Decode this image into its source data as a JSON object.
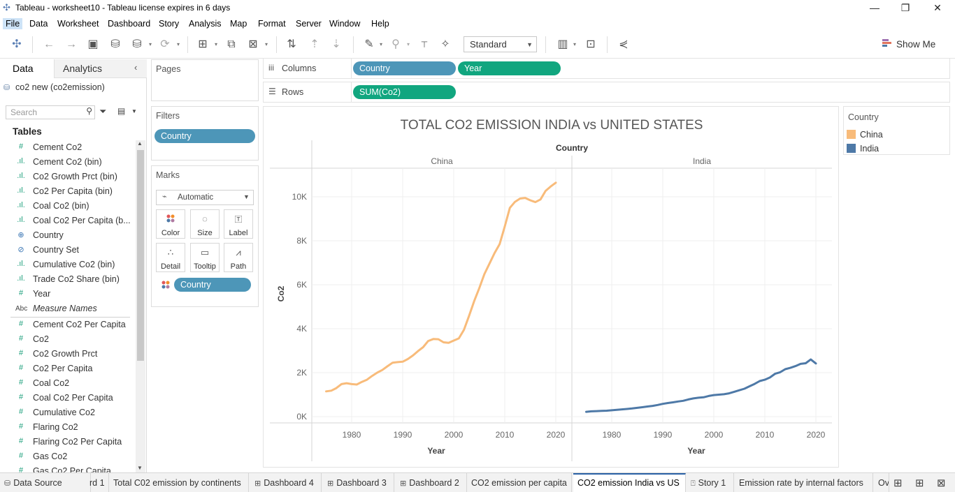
{
  "window": {
    "title": "Tableau - worksheet10 - Tableau license expires in 6 days",
    "minimize": "—",
    "restore": "❐",
    "close": "✕"
  },
  "menu": [
    "File",
    "Data",
    "Worksheet",
    "Dashboard",
    "Story",
    "Analysis",
    "Map",
    "Format",
    "Server",
    "Window",
    "Help"
  ],
  "toolbar": {
    "fit_value": "Standard",
    "show_me_label": "Show Me"
  },
  "data_pane": {
    "tabs": [
      "Data",
      "Analytics"
    ],
    "datasource": "co2 new (co2emission)",
    "search_placeholder": "Search",
    "tables_heading": "Tables",
    "dimensions": [
      {
        "icon": "#",
        "name": "Cement Co2"
      },
      {
        "icon": "bin",
        "name": "Cement Co2 (bin)"
      },
      {
        "icon": "bin",
        "name": "Co2 Growth Prct (bin)"
      },
      {
        "icon": "bin",
        "name": "Co2 Per Capita (bin)"
      },
      {
        "icon": "bin",
        "name": "Coal Co2 (bin)"
      },
      {
        "icon": "bin",
        "name": "Coal Co2 Per Capita (b..."
      },
      {
        "icon": "globe",
        "name": "Country"
      },
      {
        "icon": "set",
        "name": "Country Set"
      },
      {
        "icon": "bin",
        "name": "Cumulative Co2 (bin)"
      },
      {
        "icon": "bin",
        "name": "Trade Co2 Share (bin)"
      },
      {
        "icon": "#",
        "name": "Year"
      },
      {
        "icon": "Abc",
        "name": "Measure Names"
      }
    ],
    "measures": [
      "Cement Co2 Per Capita",
      "Co2",
      "Co2 Growth Prct",
      "Co2 Per Capita",
      "Coal Co2",
      "Coal Co2 Per Capita",
      "Cumulative Co2",
      "Flaring Co2",
      "Flaring Co2 Per Capita",
      "Gas Co2",
      "Gas Co2 Per Capita"
    ]
  },
  "cards": {
    "pages": "Pages",
    "filters": "Filters",
    "filter_pill": "Country",
    "marks": "Marks",
    "mark_type": "Automatic",
    "mark_buttons": [
      "Color",
      "Size",
      "Label",
      "Detail",
      "Tooltip",
      "Path"
    ],
    "marks_pill": "Country"
  },
  "shelves": {
    "columns_label": "Columns",
    "rows_label": "Rows",
    "columns_pills": [
      "Country",
      "Year"
    ],
    "rows_pills": [
      "SUM(Co2)"
    ]
  },
  "legend": {
    "title": "Country",
    "items": [
      {
        "name": "China",
        "color": "#f8bb7a"
      },
      {
        "name": "India",
        "color": "#4e79a7"
      }
    ]
  },
  "chart_data": {
    "type": "line",
    "title": "TOTAL CO2 EMISSION INDIA vs UNITED STATES",
    "column_header": "Country",
    "xlabel": "Year",
    "ylabel": "Co2",
    "ylim": [
      0,
      11000
    ],
    "xlim": [
      1972,
      2022
    ],
    "y_ticks": [
      0,
      2000,
      4000,
      6000,
      8000,
      10000
    ],
    "y_tick_labels": [
      "0K",
      "2K",
      "4K",
      "6K",
      "8K",
      "10K"
    ],
    "x_ticks": [
      1980,
      1990,
      2000,
      2010,
      2020
    ],
    "grid": true,
    "panes": [
      {
        "name": "China",
        "color": "#f8bb7a",
        "x": [
          1975,
          1976,
          1977,
          1978,
          1979,
          1980,
          1981,
          1982,
          1983,
          1984,
          1985,
          1986,
          1987,
          1988,
          1989,
          1990,
          1991,
          1992,
          1993,
          1994,
          1995,
          1996,
          1997,
          1998,
          1999,
          2000,
          2001,
          2002,
          2003,
          2004,
          2005,
          2006,
          2007,
          2008,
          2009,
          2010,
          2011,
          2012,
          2013,
          2014,
          2015,
          2016,
          2017,
          2018,
          2019,
          2020
        ],
        "y": [
          1150,
          1180,
          1300,
          1480,
          1520,
          1480,
          1460,
          1580,
          1680,
          1850,
          2000,
          2120,
          2290,
          2450,
          2480,
          2500,
          2620,
          2780,
          2980,
          3160,
          3440,
          3530,
          3520,
          3380,
          3360,
          3460,
          3560,
          3950,
          4580,
          5250,
          5840,
          6480,
          6960,
          7440,
          7850,
          8650,
          9500,
          9770,
          9920,
          9950,
          9840,
          9760,
          9880,
          10270,
          10470,
          10640
        ]
      },
      {
        "name": "India",
        "color": "#4e79a7",
        "x": [
          1975,
          1976,
          1977,
          1978,
          1979,
          1980,
          1981,
          1982,
          1983,
          1984,
          1985,
          1986,
          1987,
          1988,
          1989,
          1990,
          1991,
          1992,
          1993,
          1994,
          1995,
          1996,
          1997,
          1998,
          1999,
          2000,
          2001,
          2002,
          2003,
          2004,
          2005,
          2006,
          2007,
          2008,
          2009,
          2010,
          2011,
          2012,
          2013,
          2014,
          2015,
          2016,
          2017,
          2018,
          2019,
          2020
        ],
        "y": [
          220,
          240,
          250,
          260,
          270,
          290,
          310,
          330,
          350,
          370,
          400,
          430,
          460,
          490,
          530,
          580,
          620,
          650,
          690,
          720,
          780,
          830,
          860,
          880,
          940,
          980,
          1000,
          1020,
          1060,
          1130,
          1200,
          1270,
          1380,
          1490,
          1620,
          1680,
          1780,
          1950,
          2020,
          2160,
          2220,
          2300,
          2400,
          2430,
          2600,
          2420
        ]
      }
    ]
  },
  "bottom_tabs": [
    {
      "icon": "db",
      "label": "Data Source"
    },
    {
      "icon": "",
      "label": "rd 1"
    },
    {
      "icon": "",
      "label": "Total C02 emission by continents"
    },
    {
      "icon": "dash",
      "label": "Dashboard 4"
    },
    {
      "icon": "dash",
      "label": "Dashboard 3"
    },
    {
      "icon": "dash",
      "label": "Dashboard 2"
    },
    {
      "icon": "",
      "label": "CO2 emission per capita"
    },
    {
      "icon": "",
      "label": "CO2 emission India vs US"
    },
    {
      "icon": "story",
      "label": "Story 1"
    },
    {
      "icon": "",
      "label": "Emission rate by internal factors"
    },
    {
      "icon": "",
      "label": "Ov"
    }
  ]
}
